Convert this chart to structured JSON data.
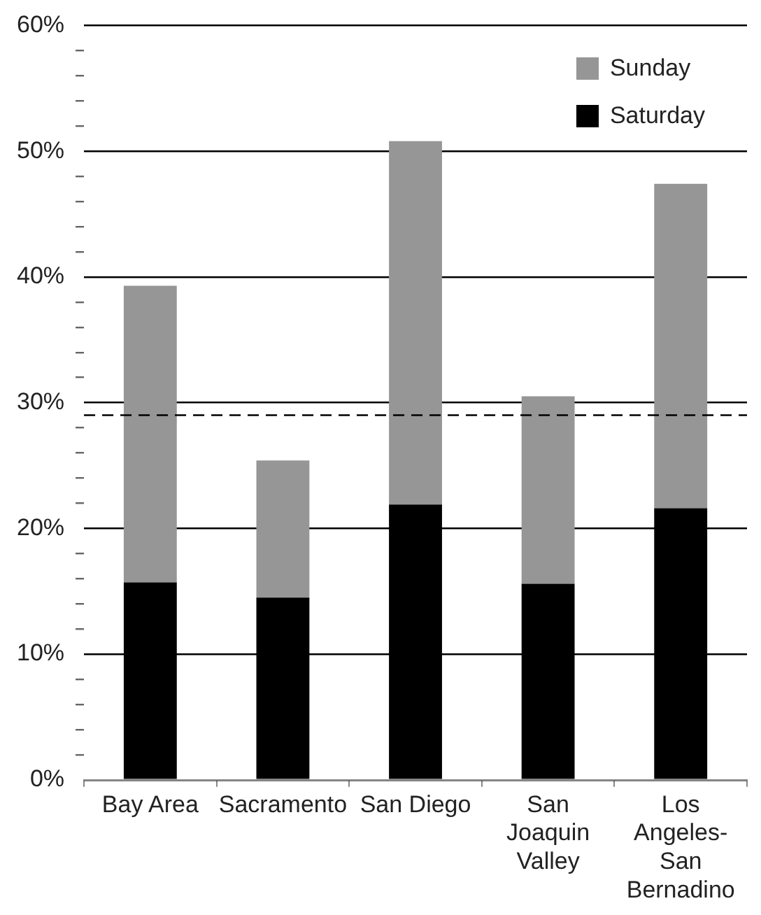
{
  "chart_data": {
    "type": "bar",
    "stacked": true,
    "categories": [
      "Bay Area",
      "Sacramento",
      "San Diego",
      "San Joaquin Valley",
      "Los Angeles-San Bernadino"
    ],
    "series": [
      {
        "name": "Saturday",
        "color": "#000000",
        "values": [
          15.7,
          14.5,
          21.9,
          15.6,
          21.6
        ]
      },
      {
        "name": "Sunday",
        "color": "#969696",
        "values": [
          23.6,
          10.9,
          28.9,
          14.9,
          25.8
        ]
      }
    ],
    "ylim": [
      0,
      60
    ],
    "yticks": [
      {
        "value": 0,
        "label": "0%"
      },
      {
        "value": 2,
        "label": null
      },
      {
        "value": 4,
        "label": null
      },
      {
        "value": 6,
        "label": null
      },
      {
        "value": 8,
        "label": null
      },
      {
        "value": 10,
        "label": "10%"
      },
      {
        "value": 12,
        "label": null
      },
      {
        "value": 14,
        "label": null
      },
      {
        "value": 16,
        "label": null
      },
      {
        "value": 18,
        "label": null
      },
      {
        "value": 20,
        "label": "20%"
      },
      {
        "value": 22,
        "label": null
      },
      {
        "value": 24,
        "label": null
      },
      {
        "value": 26,
        "label": null
      },
      {
        "value": 28,
        "label": null
      },
      {
        "value": 30,
        "label": "30%"
      },
      {
        "value": 32,
        "label": null
      },
      {
        "value": 34,
        "label": null
      },
      {
        "value": 36,
        "label": null
      },
      {
        "value": 38,
        "label": null
      },
      {
        "value": 40,
        "label": "40%"
      },
      {
        "value": 42,
        "label": null
      },
      {
        "value": 44,
        "label": null
      },
      {
        "value": 46,
        "label": null
      },
      {
        "value": 48,
        "label": null
      },
      {
        "value": 50,
        "label": "50%"
      },
      {
        "value": 52,
        "label": null
      },
      {
        "value": 54,
        "label": null
      },
      {
        "value": 56,
        "label": null
      },
      {
        "value": 58,
        "label": null
      },
      {
        "value": 60,
        "label": "60%"
      }
    ],
    "grid": "y",
    "legend": "top right",
    "ref_lines": [
      {
        "axis": "y",
        "value": 29,
        "color": "#000000",
        "line_style": "dashed"
      }
    ]
  }
}
